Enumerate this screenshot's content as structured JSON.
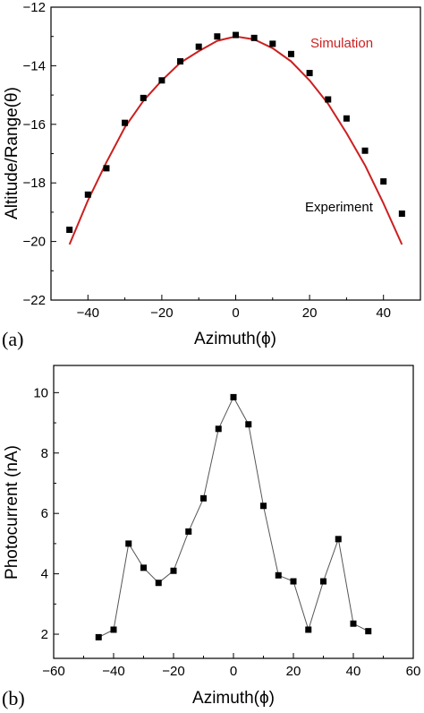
{
  "chart_data": [
    {
      "type": "scatter",
      "panel_label": "(a)",
      "xlabel": "Azimuth(ϕ)",
      "ylabel": "Altitude/Range(θ)",
      "xlim": [
        -50,
        50
      ],
      "ylim": [
        -22,
        -12
      ],
      "xticks": [
        -40,
        -20,
        0,
        20,
        40
      ],
      "yticks": [
        -22,
        -20,
        -18,
        -16,
        -14,
        -12
      ],
      "grid": false,
      "series": [
        {
          "name": "Simulation",
          "kind": "line",
          "color": "#cc1f1f",
          "x": [
            -45,
            -40,
            -35,
            -30,
            -25,
            -20,
            -15,
            -10,
            -5,
            0,
            5,
            10,
            15,
            20,
            25,
            30,
            35,
            40,
            45
          ],
          "y": [
            -20.1,
            -18.6,
            -17.3,
            -16.1,
            -15.2,
            -14.5,
            -13.9,
            -13.5,
            -13.15,
            -13.0,
            -13.1,
            -13.4,
            -13.85,
            -14.5,
            -15.3,
            -16.3,
            -17.4,
            -18.7,
            -20.1
          ]
        },
        {
          "name": "Experiment",
          "kind": "markers",
          "color": "#000000",
          "x": [
            -45,
            -40,
            -35,
            -30,
            -25,
            -20,
            -15,
            -10,
            -5,
            0,
            5,
            10,
            15,
            20,
            25,
            30,
            35,
            40,
            45
          ],
          "y": [
            -19.6,
            -18.4,
            -17.5,
            -15.95,
            -15.1,
            -14.5,
            -13.85,
            -13.35,
            -13.0,
            -12.95,
            -13.05,
            -13.25,
            -13.6,
            -14.25,
            -15.15,
            -15.8,
            -16.9,
            -17.95,
            -19.05
          ]
        }
      ]
    },
    {
      "type": "line",
      "panel_label": "(b)",
      "xlabel": "Azimuth(ϕ)",
      "ylabel": "Photocurrent (nA)",
      "xlim": [
        -60,
        60
      ],
      "ylim": [
        1.2,
        10.9
      ],
      "xticks": [
        -60,
        -40,
        -20,
        0,
        20,
        40,
        60
      ],
      "yticks": [
        2,
        4,
        6,
        8,
        10
      ],
      "grid": false,
      "series": [
        {
          "color": "#555555",
          "x": [
            -45,
            -40,
            -35,
            -30,
            -25,
            -20,
            -15,
            -10,
            -5,
            0,
            5,
            10,
            15,
            20,
            25,
            30,
            35,
            40,
            45
          ],
          "y": [
            1.9,
            2.15,
            5.0,
            4.2,
            3.7,
            4.1,
            5.4,
            6.5,
            8.8,
            9.85,
            8.95,
            6.25,
            3.95,
            3.75,
            2.15,
            3.75,
            5.15,
            2.35,
            2.1
          ]
        }
      ]
    }
  ]
}
